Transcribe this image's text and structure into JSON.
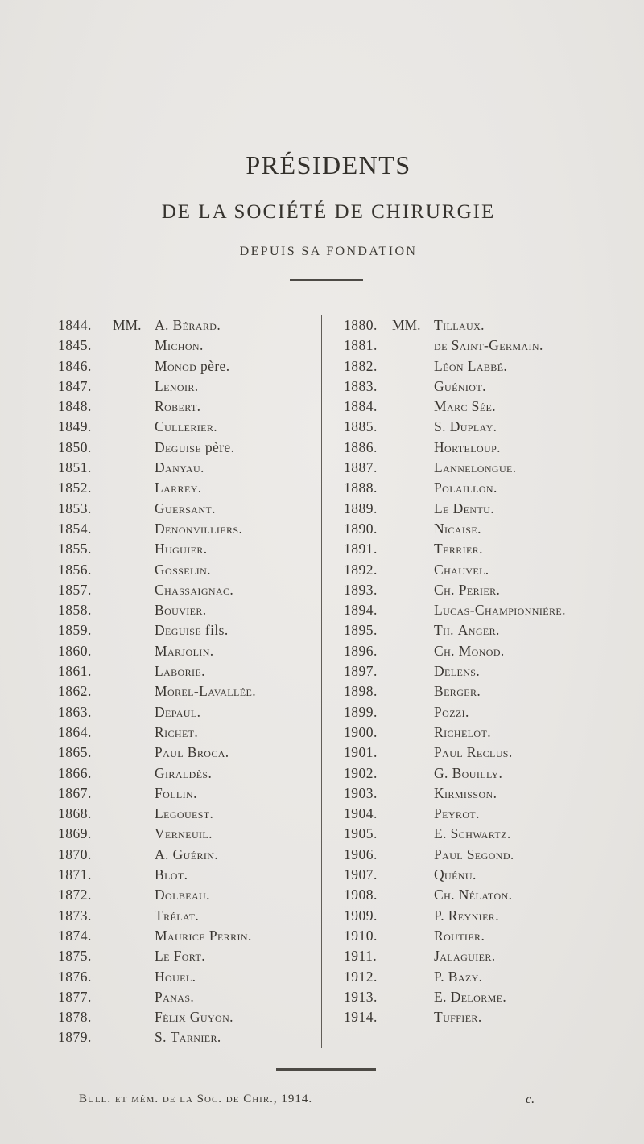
{
  "page": {
    "title": "PRÉSIDENTS",
    "subtitle": "DE LA SOCIÉTÉ DE CHIRURGIE",
    "tagline": "DEPUIS SA FONDATION",
    "footer": {
      "citation": "Bull. et mém. de la Soc. de Chir., 1914.",
      "signature": "c."
    },
    "paper_color": "#e8e6e3",
    "ink_color": "#3a3631"
  },
  "presidents": {
    "left_column": [
      {
        "year": "1844.",
        "prefix": "MM.",
        "name": "A. Bérard."
      },
      {
        "year": "1845.",
        "prefix": "",
        "name": "Michon."
      },
      {
        "year": "1846.",
        "prefix": "",
        "name": "Monod père."
      },
      {
        "year": "1847.",
        "prefix": "",
        "name": "Lenoir."
      },
      {
        "year": "1848.",
        "prefix": "",
        "name": "Robert."
      },
      {
        "year": "1849.",
        "prefix": "",
        "name": "Cullerier."
      },
      {
        "year": "1850.",
        "prefix": "",
        "name": "Deguise père."
      },
      {
        "year": "1851.",
        "prefix": "",
        "name": "Danyau."
      },
      {
        "year": "1852.",
        "prefix": "",
        "name": "Larrey."
      },
      {
        "year": "1853.",
        "prefix": "",
        "name": "Guersant."
      },
      {
        "year": "1854.",
        "prefix": "",
        "name": "Denonvilliers."
      },
      {
        "year": "1855.",
        "prefix": "",
        "name": "Huguier."
      },
      {
        "year": "1856.",
        "prefix": "",
        "name": "Gosselin."
      },
      {
        "year": "1857.",
        "prefix": "",
        "name": "Chassaignac."
      },
      {
        "year": "1858.",
        "prefix": "",
        "name": "Bouvier."
      },
      {
        "year": "1859.",
        "prefix": "",
        "name": "Deguise fils."
      },
      {
        "year": "1860.",
        "prefix": "",
        "name": "Marjolin."
      },
      {
        "year": "1861.",
        "prefix": "",
        "name": "Laborie."
      },
      {
        "year": "1862.",
        "prefix": "",
        "name": "Morel-Lavallée."
      },
      {
        "year": "1863.",
        "prefix": "",
        "name": "Depaul."
      },
      {
        "year": "1864.",
        "prefix": "",
        "name": "Richet."
      },
      {
        "year": "1865.",
        "prefix": "",
        "name": "Paul Broca."
      },
      {
        "year": "1866.",
        "prefix": "",
        "name": "Giraldès."
      },
      {
        "year": "1867.",
        "prefix": "",
        "name": "Follin."
      },
      {
        "year": "1868.",
        "prefix": "",
        "name": "Legouest."
      },
      {
        "year": "1869.",
        "prefix": "",
        "name": "Verneuil."
      },
      {
        "year": "1870.",
        "prefix": "",
        "name": "A. Guérin."
      },
      {
        "year": "1871.",
        "prefix": "",
        "name": "Blot."
      },
      {
        "year": "1872.",
        "prefix": "",
        "name": "Dolbeau."
      },
      {
        "year": "1873.",
        "prefix": "",
        "name": "Trélat."
      },
      {
        "year": "1874.",
        "prefix": "",
        "name": "Maurice Perrin."
      },
      {
        "year": "1875.",
        "prefix": "",
        "name": "Le Fort."
      },
      {
        "year": "1876.",
        "prefix": "",
        "name": "Houel."
      },
      {
        "year": "1877.",
        "prefix": "",
        "name": "Panas."
      },
      {
        "year": "1878.",
        "prefix": "",
        "name": "Félix Guyon."
      },
      {
        "year": "1879.",
        "prefix": "",
        "name": "S. Tarnier."
      }
    ],
    "right_column": [
      {
        "year": "1880.",
        "prefix": "MM.",
        "name": "Tillaux."
      },
      {
        "year": "1881.",
        "prefix": "",
        "name": "de Saint-Germain."
      },
      {
        "year": "1882.",
        "prefix": "",
        "name": "Léon Labbé."
      },
      {
        "year": "1883.",
        "prefix": "",
        "name": "Guéniot."
      },
      {
        "year": "1884.",
        "prefix": "",
        "name": "Marc Sée."
      },
      {
        "year": "1885.",
        "prefix": "",
        "name": "S. Duplay."
      },
      {
        "year": "1886.",
        "prefix": "",
        "name": "Horteloup."
      },
      {
        "year": "1887.",
        "prefix": "",
        "name": "Lannelongue."
      },
      {
        "year": "1888.",
        "prefix": "",
        "name": "Polaillon."
      },
      {
        "year": "1889.",
        "prefix": "",
        "name": "Le Dentu."
      },
      {
        "year": "1890.",
        "prefix": "",
        "name": "Nicaise."
      },
      {
        "year": "1891.",
        "prefix": "",
        "name": "Terrier."
      },
      {
        "year": "1892.",
        "prefix": "",
        "name": "Chauvel."
      },
      {
        "year": "1893.",
        "prefix": "",
        "name": "Ch. Perier."
      },
      {
        "year": "1894.",
        "prefix": "",
        "name": "Lucas-Championnière."
      },
      {
        "year": "1895.",
        "prefix": "",
        "name": "Th. Anger."
      },
      {
        "year": "1896.",
        "prefix": "",
        "name": "Ch. Monod."
      },
      {
        "year": "1897.",
        "prefix": "",
        "name": "Delens."
      },
      {
        "year": "1898.",
        "prefix": "",
        "name": "Berger."
      },
      {
        "year": "1899.",
        "prefix": "",
        "name": "Pozzi."
      },
      {
        "year": "1900.",
        "prefix": "",
        "name": "Richelot."
      },
      {
        "year": "1901.",
        "prefix": "",
        "name": "Paul Reclus."
      },
      {
        "year": "1902.",
        "prefix": "",
        "name": "G. Bouilly."
      },
      {
        "year": "1903.",
        "prefix": "",
        "name": "Kirmisson."
      },
      {
        "year": "1904.",
        "prefix": "",
        "name": "Peyrot."
      },
      {
        "year": "1905.",
        "prefix": "",
        "name": "E. Schwartz."
      },
      {
        "year": "1906.",
        "prefix": "",
        "name": "Paul Segond."
      },
      {
        "year": "1907.",
        "prefix": "",
        "name": "Quénu."
      },
      {
        "year": "1908.",
        "prefix": "",
        "name": "Ch. Nélaton."
      },
      {
        "year": "1909.",
        "prefix": "",
        "name": "P. Reynier."
      },
      {
        "year": "1910.",
        "prefix": "",
        "name": "Routier."
      },
      {
        "year": "1911.",
        "prefix": "",
        "name": "Jalaguier."
      },
      {
        "year": "1912.",
        "prefix": "",
        "name": "P. Bazy."
      },
      {
        "year": "1913.",
        "prefix": "",
        "name": "E. Delorme."
      },
      {
        "year": "1914.",
        "prefix": "",
        "name": "Tuffier."
      }
    ]
  }
}
